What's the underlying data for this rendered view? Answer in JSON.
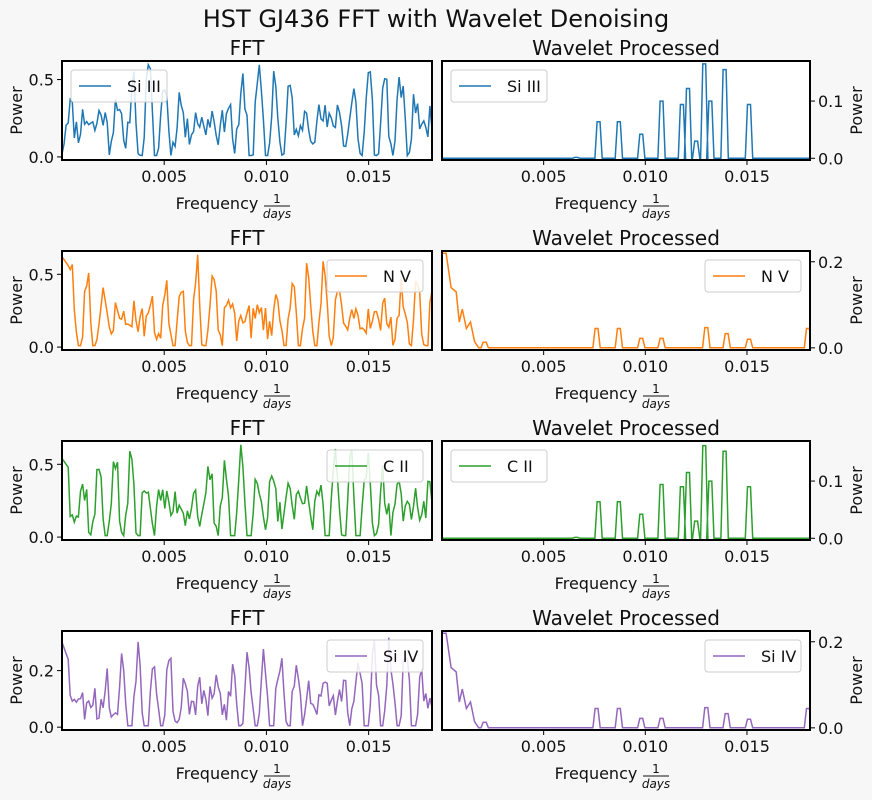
{
  "figure": {
    "title": "HST GJ436 FFT with Wavelet Denoising"
  },
  "chart_data": [
    {
      "id": "fft-si3",
      "type": "line",
      "title": "FFT",
      "xlabel": "Frequency",
      "xlabel_frac_num": "1",
      "xlabel_frac_den": "days",
      "ylabel": "Power",
      "xlim": [
        0,
        0.0181
      ],
      "ylim": [
        -0.02,
        0.62
      ],
      "xticks": [
        0.005,
        0.01,
        0.015
      ],
      "xtick_labels": [
        "0.005",
        "0.010",
        "0.015"
      ],
      "yticks": [
        0,
        0.5
      ],
      "ytick_labels": [
        "0.0",
        "0.5"
      ],
      "legend": "upper-left",
      "series": [
        {
          "name": "Si III",
          "color": "#1f77b4",
          "seed": 11,
          "base": 0.23,
          "amp": 0.32,
          "x": [],
          "y": []
        }
      ]
    },
    {
      "id": "wav-si3",
      "type": "line",
      "title": "Wavelet Processed",
      "xlabel": "Frequency",
      "xlabel_frac_num": "1",
      "xlabel_frac_den": "days",
      "ylabel": "Power",
      "yaxis_side": "right",
      "xlim": [
        0,
        0.0181
      ],
      "ylim": [
        -0.003,
        0.17
      ],
      "xticks": [
        0.005,
        0.01,
        0.015
      ],
      "xtick_labels": [
        "0.005",
        "0.010",
        "0.015"
      ],
      "yticks": [
        0,
        0.1
      ],
      "ytick_labels": [
        "0.0",
        "0.1"
      ],
      "legend": "upper-left",
      "series": [
        {
          "name": "Si III",
          "color": "#1f77b4",
          "spikes": [
            [
              0.0066,
              0.0015
            ],
            [
              0.0077,
              0.064
            ],
            [
              0.0087,
              0.064
            ],
            [
              0.0098,
              0.042
            ],
            [
              0.0108,
              0.1
            ],
            [
              0.0118,
              0.094
            ],
            [
              0.0121,
              0.122
            ],
            [
              0.0125,
              0.03
            ],
            [
              0.0129,
              0.165
            ],
            [
              0.0132,
              0.1
            ],
            [
              0.0139,
              0.155
            ],
            [
              0.0151,
              0.094
            ]
          ]
        }
      ]
    },
    {
      "id": "fft-n5",
      "type": "line",
      "title": "FFT",
      "xlabel": "Frequency",
      "xlabel_frac_num": "1",
      "xlabel_frac_den": "days",
      "ylabel": "Power",
      "xlim": [
        0,
        0.0181
      ],
      "ylim": [
        -0.02,
        0.66
      ],
      "xticks": [
        0.005,
        0.01,
        0.015
      ],
      "xtick_labels": [
        "0.005",
        "0.010",
        "0.015"
      ],
      "yticks": [
        0,
        0.5
      ],
      "ytick_labels": [
        "0.0",
        "0.5"
      ],
      "legend": "upper-right",
      "series": [
        {
          "name": "N V",
          "color": "#ff7f0e",
          "seed": 23,
          "base": 0.2,
          "amp": 0.33,
          "start": 0.62,
          "x": [],
          "y": []
        }
      ]
    },
    {
      "id": "wav-n5",
      "type": "line",
      "title": "Wavelet Processed",
      "xlabel": "Frequency",
      "xlabel_frac_num": "1",
      "xlabel_frac_den": "days",
      "ylabel": "Power",
      "yaxis_side": "right",
      "xlim": [
        0,
        0.0181
      ],
      "ylim": [
        -0.005,
        0.225
      ],
      "xticks": [
        0.005,
        0.01,
        0.015
      ],
      "xtick_labels": [
        "0.005",
        "0.010",
        "0.015"
      ],
      "yticks": [
        0,
        0.2
      ],
      "ytick_labels": [
        "0.0",
        "0.2"
      ],
      "legend": "upper-right",
      "series": [
        {
          "name": "N V",
          "color": "#ff7f0e",
          "start": [
            [
              0,
              0.22
            ],
            [
              0.0002,
              0.22
            ],
            [
              0.00045,
              0.14
            ],
            [
              0.0007,
              0.13
            ],
            [
              0.00085,
              0.06
            ],
            [
              0.001,
              0.09
            ],
            [
              0.0012,
              0.045
            ],
            [
              0.0014,
              0.06
            ],
            [
              0.0016,
              0.015
            ],
            [
              0.0018,
              0
            ]
          ],
          "spikes": [
            [
              0.0021,
              0.013
            ],
            [
              0.0076,
              0.045
            ],
            [
              0.0087,
              0.045
            ],
            [
              0.0098,
              0.022
            ],
            [
              0.0108,
              0.022
            ],
            [
              0.013,
              0.047
            ],
            [
              0.014,
              0.033
            ],
            [
              0.0151,
              0.02
            ],
            [
              0.018,
              0.045
            ]
          ]
        }
      ]
    },
    {
      "id": "fft-c2",
      "type": "line",
      "title": "FFT",
      "xlabel": "Frequency",
      "xlabel_frac_num": "1",
      "xlabel_frac_den": "days",
      "ylabel": "Power",
      "xlim": [
        0,
        0.0181
      ],
      "ylim": [
        -0.02,
        0.66
      ],
      "xticks": [
        0.005,
        0.01,
        0.015
      ],
      "xtick_labels": [
        "0.005",
        "0.010",
        "0.015"
      ],
      "yticks": [
        0,
        0.5
      ],
      "ytick_labels": [
        "0.0",
        "0.5"
      ],
      "legend": "upper-right",
      "series": [
        {
          "name": "C II",
          "color": "#2ca02c",
          "seed": 37,
          "base": 0.22,
          "amp": 0.34,
          "start": 0.54,
          "x": [],
          "y": []
        }
      ]
    },
    {
      "id": "wav-c2",
      "type": "line",
      "title": "Wavelet Processed",
      "xlabel": "Frequency",
      "xlabel_frac_num": "1",
      "xlabel_frac_den": "days",
      "ylabel": "Power",
      "yaxis_side": "right",
      "xlim": [
        0,
        0.0181
      ],
      "ylim": [
        -0.003,
        0.17
      ],
      "xticks": [
        0.005,
        0.01,
        0.015
      ],
      "xtick_labels": [
        "0.005",
        "0.010",
        "0.015"
      ],
      "yticks": [
        0,
        0.1
      ],
      "ytick_labels": [
        "0.0",
        "0.1"
      ],
      "legend": "upper-left",
      "series": [
        {
          "name": "C II",
          "color": "#2ca02c",
          "spikes": [
            [
              0.0066,
              0.0015
            ],
            [
              0.0077,
              0.064
            ],
            [
              0.0087,
              0.064
            ],
            [
              0.0098,
              0.042
            ],
            [
              0.0108,
              0.094
            ],
            [
              0.0118,
              0.09
            ],
            [
              0.0121,
              0.115
            ],
            [
              0.0125,
              0.03
            ],
            [
              0.0129,
              0.162
            ],
            [
              0.0132,
              0.1
            ],
            [
              0.0139,
              0.152
            ],
            [
              0.0151,
              0.09
            ]
          ]
        }
      ]
    },
    {
      "id": "fft-si4",
      "type": "line",
      "title": "FFT",
      "xlabel": "Frequency",
      "xlabel_frac_num": "1",
      "xlabel_frac_den": "days",
      "ylabel": "Power",
      "xlim": [
        0,
        0.0181
      ],
      "ylim": [
        -0.01,
        0.34
      ],
      "xticks": [
        0.005,
        0.01,
        0.015
      ],
      "xtick_labels": [
        "0.005",
        "0.010",
        "0.015"
      ],
      "yticks": [
        0,
        0.2
      ],
      "ytick_labels": [
        "0.0",
        "0.2"
      ],
      "legend": "upper-right",
      "series": [
        {
          "name": "Si IV",
          "color": "#9467bd",
          "seed": 53,
          "base": 0.1,
          "amp": 0.18,
          "start": 0.3,
          "x": [],
          "y": []
        }
      ]
    },
    {
      "id": "wav-si4",
      "type": "line",
      "title": "Wavelet Processed",
      "xlabel": "Frequency",
      "xlabel_frac_num": "1",
      "xlabel_frac_den": "days",
      "ylabel": "Power",
      "yaxis_side": "right",
      "xlim": [
        0,
        0.0181
      ],
      "ylim": [
        -0.005,
        0.225
      ],
      "xticks": [
        0.005,
        0.01,
        0.015
      ],
      "xtick_labels": [
        "0.005",
        "0.010",
        "0.015"
      ],
      "yticks": [
        0,
        0.2
      ],
      "ytick_labels": [
        "0.0",
        "0.2"
      ],
      "legend": "upper-right",
      "series": [
        {
          "name": "Si IV",
          "color": "#9467bd",
          "start": [
            [
              0,
              0.22
            ],
            [
              0.0002,
              0.22
            ],
            [
              0.00045,
              0.14
            ],
            [
              0.0007,
              0.13
            ],
            [
              0.00085,
              0.06
            ],
            [
              0.001,
              0.09
            ],
            [
              0.0012,
              0.045
            ],
            [
              0.0014,
              0.06
            ],
            [
              0.0016,
              0.015
            ],
            [
              0.0018,
              0
            ]
          ],
          "spikes": [
            [
              0.0021,
              0.013
            ],
            [
              0.0076,
              0.045
            ],
            [
              0.0087,
              0.045
            ],
            [
              0.0098,
              0.022
            ],
            [
              0.0108,
              0.022
            ],
            [
              0.013,
              0.047
            ],
            [
              0.014,
              0.033
            ],
            [
              0.0151,
              0.02
            ],
            [
              0.018,
              0.045
            ]
          ]
        }
      ]
    }
  ]
}
